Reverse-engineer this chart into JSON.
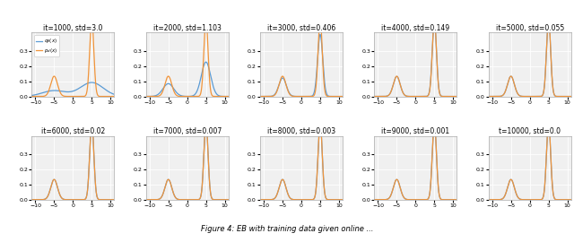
{
  "panels": [
    {
      "title": "it=1000, std=3.0",
      "std": 3.0,
      "row": 0,
      "col": 0
    },
    {
      "title": "it=2000, std=1.103",
      "std": 1.103,
      "row": 0,
      "col": 1
    },
    {
      "title": "it=3000, std=0.406",
      "std": 0.406,
      "row": 0,
      "col": 2
    },
    {
      "title": "it=4000, std=0.149",
      "std": 0.149,
      "row": 0,
      "col": 3
    },
    {
      "title": "it=5000, std=0.055",
      "std": 0.055,
      "row": 0,
      "col": 4
    },
    {
      "title": "it=6000, std=0.02",
      "std": 0.02,
      "row": 1,
      "col": 0
    },
    {
      "title": "it=7000, std=0.007",
      "std": 0.007,
      "row": 1,
      "col": 1
    },
    {
      "title": "it=8000, std=0.003",
      "std": 0.003,
      "row": 1,
      "col": 2
    },
    {
      "title": "it=9000, std=0.001",
      "std": 0.001,
      "row": 1,
      "col": 3
    },
    {
      "title": "t=10000, std=0.0",
      "std": 0.0,
      "row": 1,
      "col": 4
    }
  ],
  "target_means": [
    -5.0,
    5.0
  ],
  "target_weights": [
    0.3,
    0.7
  ],
  "target_sigmas": [
    0.9,
    0.55
  ],
  "xmin": -10,
  "xmax": 10,
  "ymin": 0.0,
  "ymax": 0.42,
  "yticks": [
    0.0,
    0.1,
    0.2,
    0.3
  ],
  "xticks": [
    -10,
    -5,
    0,
    5,
    10
  ],
  "color_model": "#5b9bd5",
  "color_target": "#f0943a",
  "legend_label_model": "$q_\\theta(x)$",
  "legend_label_target": "$p_{d}(x)$",
  "bg_color": "#f0f0f0",
  "caption": "Figure 4: EB with training data given online ..."
}
